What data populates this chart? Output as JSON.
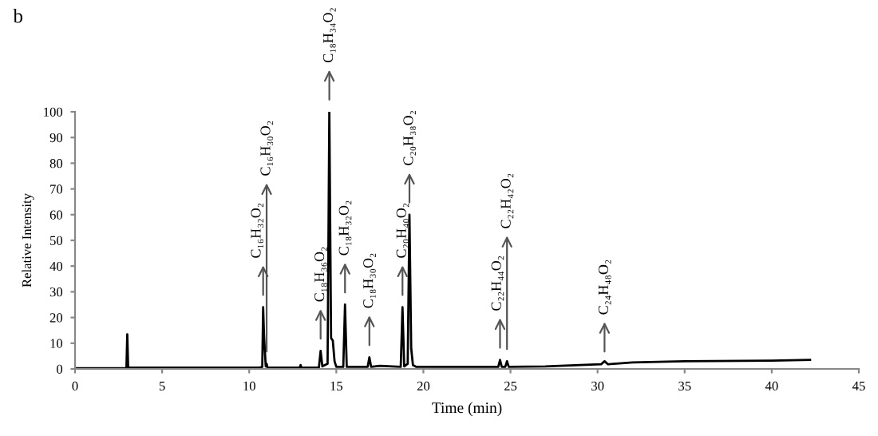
{
  "chart_data": {
    "type": "line",
    "title": "b",
    "xlabel": "Time (min)",
    "ylabel": "Relative Intensity",
    "x": [
      0,
      2.95,
      3.0,
      3.05,
      10.6,
      10.75,
      10.8,
      10.85,
      10.95,
      11.0,
      11.05,
      12.9,
      12.95,
      13.0,
      14.0,
      14.1,
      14.2,
      14.5,
      14.6,
      14.7,
      14.8,
      14.9,
      15.0,
      15.4,
      15.5,
      15.6,
      16.8,
      16.9,
      17.0,
      17.5,
      18.7,
      18.8,
      18.9,
      19.1,
      19.2,
      19.3,
      19.4,
      19.6,
      24.3,
      24.4,
      24.5,
      24.7,
      24.8,
      24.9,
      27,
      29,
      30.2,
      30.4,
      30.6,
      32,
      35,
      40,
      42.2
    ],
    "series": [
      {
        "color": "#000000",
        "values": [
          0.3,
          0.3,
          13.5,
          0.5,
          0.5,
          0.8,
          24,
          13,
          1,
          2,
          0.5,
          0.5,
          1.5,
          0.5,
          0.5,
          7,
          1,
          2,
          100,
          12,
          11,
          3,
          0.8,
          0.8,
          25,
          0.8,
          0.8,
          4.5,
          0.8,
          1.2,
          0.8,
          24,
          1,
          2,
          60,
          8,
          1.5,
          0.8,
          0.8,
          3.5,
          0.8,
          0.8,
          3,
          0.8,
          1,
          1.5,
          1.8,
          3,
          1.8,
          2.5,
          3,
          3.2,
          3.5
        ]
      }
    ],
    "annotations": [
      {
        "text": "C₁₆H₃₂O₂",
        "x": 10.8,
        "y": 24
      },
      {
        "text": "C₁₆H₃₀O₂",
        "x": 11.0,
        "y": 2
      },
      {
        "text": "C₁₈H₃₆O₂",
        "x": 14.1,
        "y": 7
      },
      {
        "text": "C₁₈H₃₄O₂",
        "x": 14.6,
        "y": 100
      },
      {
        "text": "C₁₈H₃₂O₂",
        "x": 15.5,
        "y": 25
      },
      {
        "text": "C₁₈H₃₀O₂",
        "x": 16.9,
        "y": 4.5
      },
      {
        "text": "C₂₀H₄₀O₂",
        "x": 18.8,
        "y": 24
      },
      {
        "text": "C₂₀H₃₈O₂",
        "x": 19.2,
        "y": 60
      },
      {
        "text": "C₂₂H₄₄O₂",
        "x": 24.4,
        "y": 3.5
      },
      {
        "text": "C₂₂H₄₂O₂",
        "x": 24.8,
        "y": 3
      },
      {
        "text": "C₂₄H₄₈O₂",
        "x": 30.4,
        "y": 2
      }
    ],
    "xlim": [
      0,
      45
    ],
    "xticks": [
      0,
      5,
      10,
      15,
      20,
      25,
      30,
      35,
      40,
      45
    ],
    "ylim": [
      0,
      100
    ],
    "yticks": [
      0,
      10,
      20,
      30,
      40,
      50,
      60,
      70,
      80,
      90,
      100
    ],
    "grid": false,
    "legend": false,
    "marker": "none",
    "line_style": "solid"
  }
}
